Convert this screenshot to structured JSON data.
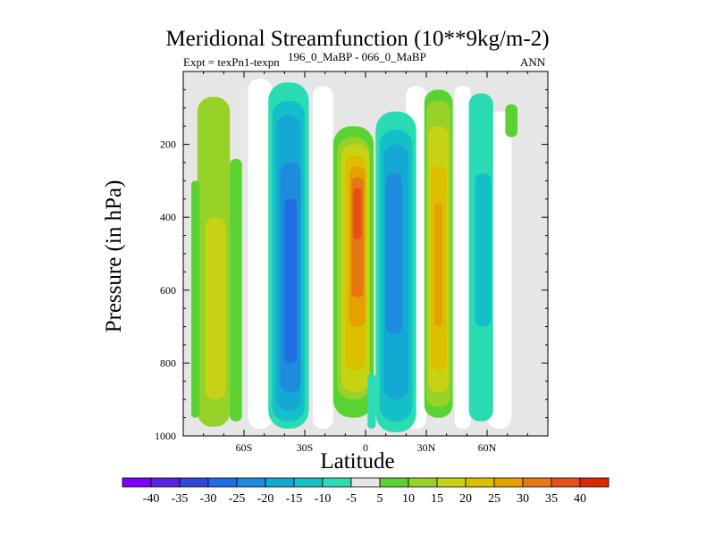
{
  "chart_data": {
    "type": "contour",
    "title": "Meridional Streamfunction (10**9kg/m-2)",
    "subtitle_left": "Expt = texPn1-texpn",
    "subtitle_mid": "196_0_MaBP - 066_0_MaBP",
    "subtitle_right": "ANN",
    "xlabel": "Latitude",
    "ylabel": "Pressure (in hPa)",
    "x_ticks": [
      {
        "value": -60,
        "label": "60S"
      },
      {
        "value": -30,
        "label": "30S"
      },
      {
        "value": 0,
        "label": "0"
      },
      {
        "value": 30,
        "label": "30N"
      },
      {
        "value": 60,
        "label": "60N"
      }
    ],
    "xlim": [
      -90,
      90
    ],
    "y_ticks": [
      200,
      400,
      600,
      800,
      1000
    ],
    "ylim": [
      0,
      1000
    ],
    "y_inverted": true,
    "colorbar": {
      "labels": [
        "-40",
        "-35",
        "-30",
        "-25",
        "-20",
        "-15",
        "-10",
        "-5",
        "5",
        "10",
        "15",
        "20",
        "25",
        "30",
        "35",
        "40"
      ],
      "colors": [
        "#8000ff",
        "#5a20e0",
        "#3246d8",
        "#1e6ee0",
        "#1e8cdc",
        "#14a8d4",
        "#14c0c8",
        "#2adcb4",
        "#e6e6e6",
        "#5ad232",
        "#96d228",
        "#c8d214",
        "#dcc000",
        "#e6a000",
        "#e67814",
        "#e65014",
        "#dc2800"
      ]
    },
    "bands": [
      {
        "lat": -75,
        "value": 10,
        "color": "#96d228"
      },
      {
        "lat": -66,
        "value": 5,
        "color": "#5ad232"
      },
      {
        "lat": -38,
        "value": -20,
        "color": "#1e8cdc"
      },
      {
        "lat": -10,
        "value": 35,
        "color": "#e65014"
      },
      {
        "lat": 8,
        "value": -5,
        "color": "#2adcb4"
      },
      {
        "lat": 16,
        "value": -15,
        "color": "#14a8d4"
      },
      {
        "lat": 36,
        "value": 25,
        "color": "#dcc000"
      },
      {
        "lat": 55,
        "value": -5,
        "color": "#2adcb4"
      }
    ]
  }
}
